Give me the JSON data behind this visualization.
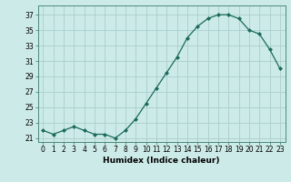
{
  "x": [
    0,
    1,
    2,
    3,
    4,
    5,
    6,
    7,
    8,
    9,
    10,
    11,
    12,
    13,
    14,
    15,
    16,
    17,
    18,
    19,
    20,
    21,
    22,
    23
  ],
  "y": [
    22.0,
    21.5,
    22.0,
    22.5,
    22.0,
    21.5,
    21.5,
    21.0,
    22.0,
    23.5,
    25.5,
    27.5,
    29.5,
    31.5,
    34.0,
    35.5,
    36.5,
    37.0,
    37.0,
    36.5,
    35.0,
    34.5,
    32.5,
    30.0
  ],
  "xlim": [
    -0.5,
    23.5
  ],
  "ylim": [
    20.5,
    38.2
  ],
  "yticks": [
    21,
    23,
    25,
    27,
    29,
    31,
    33,
    35,
    37
  ],
  "xticks": [
    0,
    1,
    2,
    3,
    4,
    5,
    6,
    7,
    8,
    9,
    10,
    11,
    12,
    13,
    14,
    15,
    16,
    17,
    18,
    19,
    20,
    21,
    22,
    23
  ],
  "xlabel": "Humidex (Indice chaleur)",
  "line_color": "#1a6b5a",
  "marker": "D",
  "marker_size": 2.0,
  "bg_color": "#cceae7",
  "grid_color": "#aacfcc",
  "tick_fontsize": 5.5,
  "xlabel_fontsize": 6.5
}
